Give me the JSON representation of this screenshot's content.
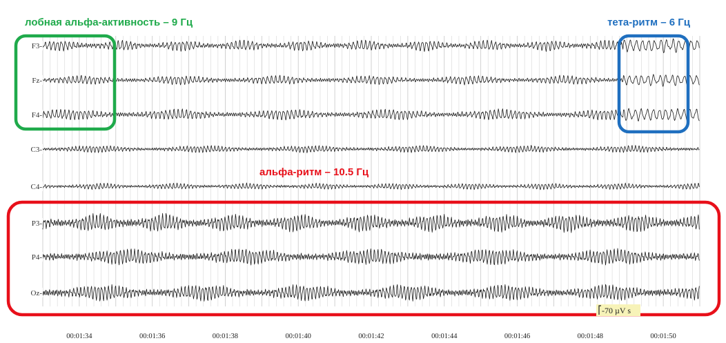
{
  "chart_data": {
    "type": "line",
    "title": "",
    "xlabel": "",
    "ylabel": "",
    "channels": [
      {
        "label": "F3-",
        "freq_hz": 9.0
      },
      {
        "label": "Fz-",
        "freq_hz": 9.0
      },
      {
        "label": "F4-",
        "freq_hz": 9.0
      },
      {
        "label": "C3-",
        "freq_hz": 10.5
      },
      {
        "label": "C4-",
        "freq_hz": 10.5
      },
      {
        "label": "P3-",
        "freq_hz": 10.5
      },
      {
        "label": "P4-",
        "freq_hz": 10.5
      },
      {
        "label": "Oz-",
        "freq_hz": 10.5
      }
    ],
    "time_ticks": [
      "00:01:34",
      "00:01:36",
      "00:01:38",
      "00:01:40",
      "00:01:42",
      "00:01:44",
      "00:01:46",
      "00:01:48",
      "00:01:50"
    ],
    "x_range_s": [
      93,
      111
    ],
    "grid": true,
    "annotations": [
      {
        "text": "лобная альфа-активность – 9 Гц",
        "color": "#1faa4b",
        "channels": [
          "F3-",
          "Fz-",
          "F4-"
        ],
        "time_range": [
          "00:01:33",
          "00:01:34"
        ]
      },
      {
        "text": "тета-ритм – 6 Гц",
        "color": "#1f6fbf",
        "channels": [
          "F3-",
          "Fz-",
          "F4-"
        ],
        "time_range": [
          "00:01:49",
          "00:01:51"
        ],
        "freq_hz": 6
      },
      {
        "text": "альфа-ритм – 10.5 Гц",
        "color": "#e8101a",
        "channels": [
          "P3-",
          "P4-",
          "Oz-"
        ],
        "time_range": [
          "00:01:33",
          "00:01:51"
        ],
        "freq_hz": 10.5
      }
    ],
    "scale_bar": "-70 µV s"
  }
}
